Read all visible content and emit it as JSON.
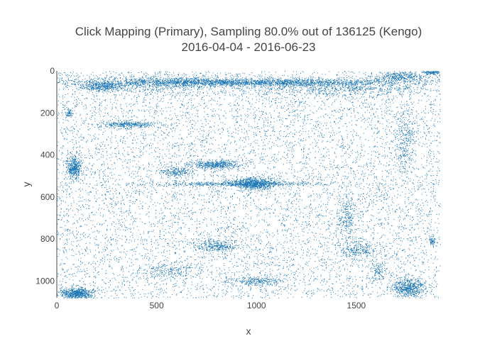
{
  "chart_data": {
    "type": "scatter",
    "title_lines": [
      "Click Mapping (Primary), Sampling 80.0% out of 136125 (Kengo)",
      "2016-04-04 - 2016-06-23"
    ],
    "xlabel": "x",
    "ylabel": "y",
    "xlim": [
      0,
      1920
    ],
    "ylim": [
      1080,
      0
    ],
    "y_reversed": true,
    "x_ticks": [
      0,
      500,
      1000,
      1500
    ],
    "y_ticks": [
      0,
      200,
      400,
      600,
      800,
      1000
    ],
    "marker_color": "#1f77b4",
    "grid": false,
    "legend": "none",
    "density": {
      "background_points": 9000,
      "clusters": [
        {
          "x": 950,
          "y": 53,
          "sx": 420,
          "sy": 9,
          "n": 2200
        },
        {
          "x": 230,
          "y": 75,
          "sx": 50,
          "sy": 10,
          "n": 350
        },
        {
          "x": 1720,
          "y": 25,
          "sx": 60,
          "sy": 12,
          "n": 350
        },
        {
          "x": 1880,
          "y": 5,
          "sx": 25,
          "sy": 5,
          "n": 150
        },
        {
          "x": 360,
          "y": 255,
          "sx": 70,
          "sy": 8,
          "n": 350
        },
        {
          "x": 85,
          "y": 460,
          "sx": 18,
          "sy": 28,
          "n": 450
        },
        {
          "x": 790,
          "y": 445,
          "sx": 70,
          "sy": 10,
          "n": 500
        },
        {
          "x": 980,
          "y": 535,
          "sx": 55,
          "sy": 14,
          "n": 800
        },
        {
          "x": 920,
          "y": 537,
          "sx": 250,
          "sy": 5,
          "n": 500
        },
        {
          "x": 600,
          "y": 480,
          "sx": 40,
          "sy": 12,
          "n": 200
        },
        {
          "x": 800,
          "y": 830,
          "sx": 60,
          "sy": 15,
          "n": 300
        },
        {
          "x": 1500,
          "y": 850,
          "sx": 50,
          "sy": 18,
          "n": 250
        },
        {
          "x": 1450,
          "y": 700,
          "sx": 25,
          "sy": 60,
          "n": 250
        },
        {
          "x": 100,
          "y": 1060,
          "sx": 40,
          "sy": 14,
          "n": 700
        },
        {
          "x": 1760,
          "y": 1030,
          "sx": 40,
          "sy": 25,
          "n": 600
        },
        {
          "x": 1000,
          "y": 1000,
          "sx": 60,
          "sy": 12,
          "n": 250
        },
        {
          "x": 550,
          "y": 950,
          "sx": 70,
          "sy": 20,
          "n": 200
        },
        {
          "x": 1740,
          "y": 320,
          "sx": 30,
          "sy": 90,
          "n": 300
        },
        {
          "x": 1880,
          "y": 810,
          "sx": 8,
          "sy": 8,
          "n": 60
        },
        {
          "x": 60,
          "y": 200,
          "sx": 10,
          "sy": 10,
          "n": 60
        },
        {
          "x": 1610,
          "y": 950,
          "sx": 20,
          "sy": 25,
          "n": 120
        },
        {
          "x": 500,
          "y": 60,
          "sx": 250,
          "sy": 22,
          "n": 800
        },
        {
          "x": 1400,
          "y": 80,
          "sx": 250,
          "sy": 20,
          "n": 700
        }
      ]
    }
  }
}
